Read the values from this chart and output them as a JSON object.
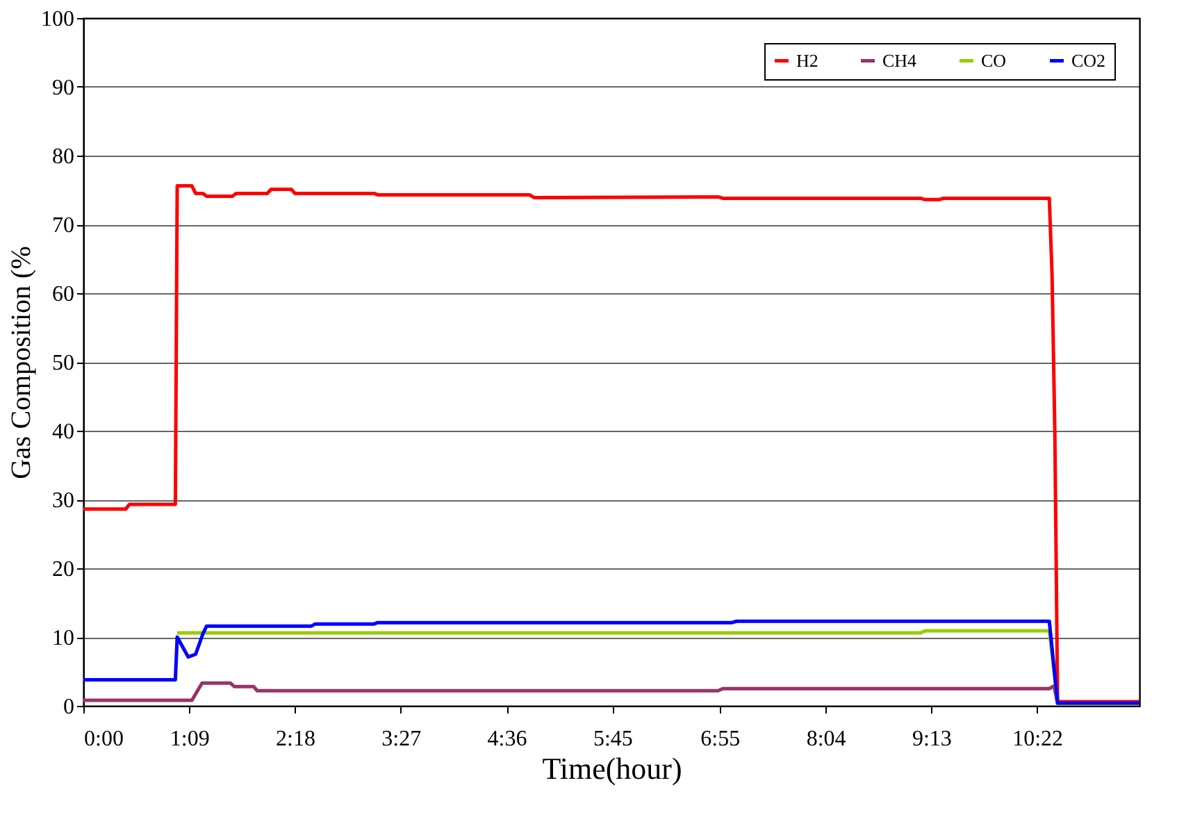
{
  "chart_data": {
    "type": "line",
    "xlabel": "Time(hour)",
    "ylabel": "Gas Composition (%",
    "xlim": [
      0,
      11.48
    ],
    "ylim": [
      0,
      100
    ],
    "xticks": [
      {
        "value": 0,
        "label": "0:00"
      },
      {
        "value": 1.15,
        "label": "1:09"
      },
      {
        "value": 2.3,
        "label": "2:18"
      },
      {
        "value": 3.45,
        "label": "3:27"
      },
      {
        "value": 4.6,
        "label": "4:36"
      },
      {
        "value": 5.75,
        "label": "5:45"
      },
      {
        "value": 6.9167,
        "label": "6:55"
      },
      {
        "value": 8.0667,
        "label": "8:04"
      },
      {
        "value": 9.2167,
        "label": "9:13"
      },
      {
        "value": 10.3667,
        "label": "10:22"
      }
    ],
    "yticks": [
      0,
      10,
      20,
      30,
      40,
      50,
      60,
      70,
      80,
      90,
      100
    ],
    "grid": "y",
    "legend": "top right",
    "marker": "none",
    "line_style": "solid",
    "series": [
      {
        "name": "H2",
        "color": "#ff0000",
        "x": [
          0,
          0.46,
          0.5,
          1.0,
          1.02,
          1.18,
          1.22,
          1.3,
          1.34,
          1.62,
          1.66,
          2.0,
          2.04,
          2.26,
          2.3,
          3.16,
          3.2,
          4.85,
          4.9,
          6.9,
          6.95,
          9.1,
          9.15,
          9.3,
          9.35,
          10.5,
          10.53,
          10.56,
          10.59,
          11.48
        ],
        "values": [
          28.6,
          28.6,
          29.3,
          29.3,
          75.6,
          75.6,
          74.5,
          74.5,
          74.1,
          74.1,
          74.5,
          74.5,
          75.1,
          75.1,
          74.5,
          74.5,
          74.3,
          74.3,
          73.9,
          74.0,
          73.8,
          73.8,
          73.6,
          73.6,
          73.8,
          73.8,
          62.6,
          39.8,
          0.6,
          0.6
        ]
      },
      {
        "name": "CH4",
        "color": "#993366",
        "x": [
          0,
          1.18,
          1.29,
          1.6,
          1.64,
          1.85,
          1.89,
          6.9,
          6.95,
          10.5,
          10.55,
          10.59,
          11.48
        ],
        "values": [
          0.8,
          0.8,
          3.3,
          3.3,
          2.8,
          2.8,
          2.2,
          2.2,
          2.5,
          2.5,
          2.9,
          0.3,
          0.3
        ]
      },
      {
        "name": "CO",
        "color": "#99cc00",
        "x": [
          1.02,
          9.1,
          9.15,
          10.5,
          10.59,
          11.48
        ],
        "values": [
          10.6,
          10.6,
          10.9,
          10.9,
          0.3,
          0.3
        ]
      },
      {
        "name": "CO2",
        "color": "#0000ff",
        "x": [
          0,
          1.0,
          1.02,
          1.14,
          1.22,
          1.3,
          1.34,
          2.48,
          2.52,
          3.16,
          3.2,
          7.05,
          7.1,
          10.5,
          10.59,
          11.48
        ],
        "values": [
          3.8,
          3.8,
          10.0,
          7.1,
          7.5,
          10.5,
          11.6,
          11.6,
          11.9,
          11.9,
          12.1,
          12.1,
          12.3,
          12.3,
          0.4,
          0.4
        ]
      }
    ]
  }
}
